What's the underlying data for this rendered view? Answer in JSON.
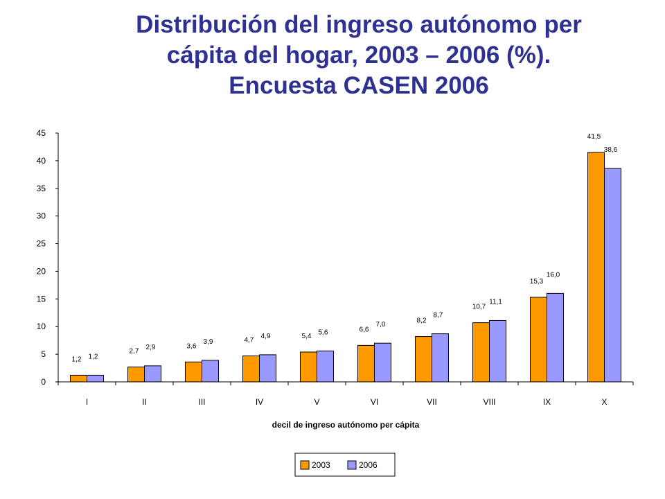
{
  "chart_data": {
    "type": "bar",
    "title_lines": [
      "Distribución del ingreso autónomo per",
      "cápita del hogar, 2003 – 2006 (%).",
      "Encuesta CASEN 2006"
    ],
    "xlabel": "decil de ingreso autónomo per cápita",
    "ylabel": "",
    "ylim": [
      0,
      45
    ],
    "yticks": [
      0,
      5,
      10,
      15,
      20,
      25,
      30,
      35,
      40,
      45
    ],
    "grid": false,
    "legend_position": "bottom-center",
    "categories": [
      "I",
      "II",
      "III",
      "IV",
      "V",
      "VI",
      "VII",
      "VIII",
      "IX",
      "X"
    ],
    "series": [
      {
        "name": "2003",
        "color": "#ff9900",
        "values": [
          1.2,
          2.7,
          3.6,
          4.7,
          5.4,
          6.6,
          8.2,
          10.7,
          15.3,
          41.5
        ],
        "labels": [
          "1,2",
          "2,7",
          "3,6",
          "4,7",
          "5,4",
          "6,6",
          "8,2",
          "10,7",
          "15,3",
          "41,5"
        ]
      },
      {
        "name": "2006",
        "color": "#9999ff",
        "values": [
          1.2,
          2.9,
          3.9,
          4.9,
          5.6,
          7.0,
          8.7,
          11.1,
          16.0,
          38.6
        ],
        "labels": [
          "1,2",
          "2,9",
          "3,9",
          "4,9",
          "5,6",
          "7,0",
          "8,7",
          "11,1",
          "16,0",
          "38,6"
        ]
      }
    ]
  }
}
